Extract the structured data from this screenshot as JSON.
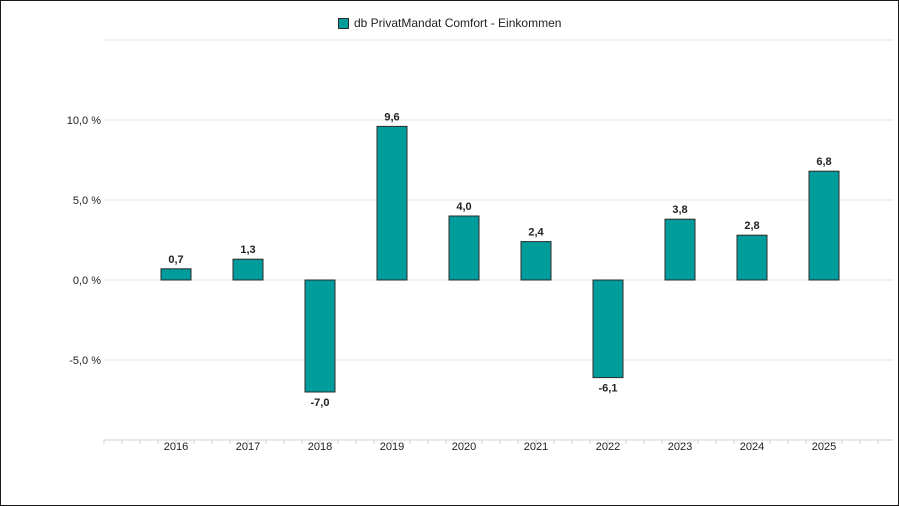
{
  "chart_data": {
    "type": "bar",
    "legend": {
      "label": "db PrivatMandat Comfort - Einkommen",
      "position": "top-center"
    },
    "categories": [
      "2016",
      "2017",
      "2018",
      "2019",
      "2020",
      "2021",
      "2022",
      "2023",
      "2024",
      "2025"
    ],
    "series": [
      {
        "name": "db PrivatMandat Comfort - Einkommen",
        "values": [
          0.7,
          1.3,
          -7.0,
          9.6,
          4.0,
          2.4,
          -6.1,
          3.8,
          2.8,
          6.8
        ],
        "value_labels": [
          "0,7",
          "1,3",
          "-7,0",
          "9,6",
          "4,0",
          "2,4",
          "-6,1",
          "3,8",
          "2,8",
          "6,8"
        ]
      }
    ],
    "y_ticks": [
      -5,
      0,
      5,
      10
    ],
    "y_tick_labels": [
      "-5,0 %",
      "0,0 %",
      "5,0 %",
      "10,0 %"
    ],
    "ylim": [
      -10,
      15
    ],
    "grid": true,
    "colors": {
      "bar": "#009b9b",
      "bar_border": "#2b2b2b",
      "grid": "#e4e4e4",
      "axis": "#d0d0d0"
    }
  }
}
